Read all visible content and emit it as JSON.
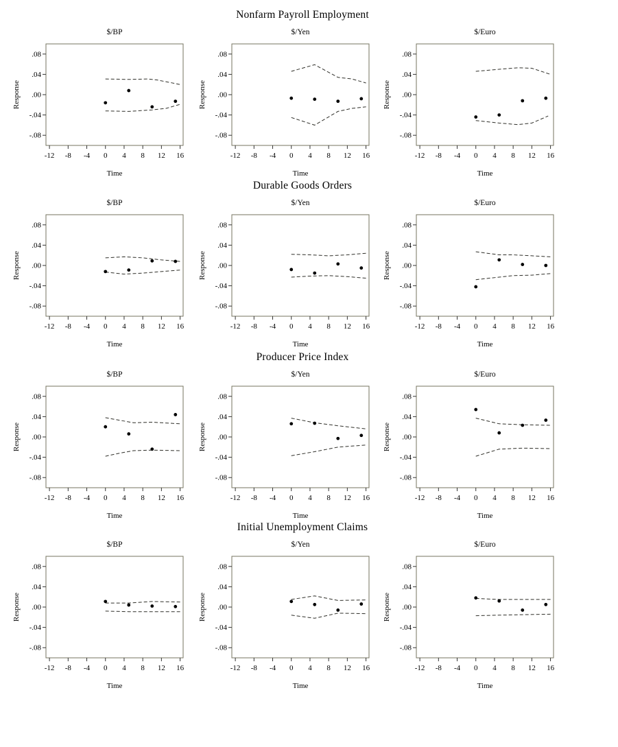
{
  "figure": {
    "row_titles": [
      "Nonfarm Payroll Employment",
      "Durable Goods Orders",
      "Producer Price Index",
      "Initial Unemployment Claims"
    ],
    "column_titles": [
      "$/BP",
      "$/Yen",
      "$/Euro"
    ]
  },
  "style": {
    "background": "#ffffff",
    "frame_color": "#75735f",
    "band_color": "#2e2e28",
    "point_color": "#000000",
    "text_color": "#000000"
  },
  "chart_data": [
    {
      "type": "scatter",
      "group": "Nonfarm Payroll Employment",
      "title": "$/BP",
      "xlabel": "Time",
      "ylabel": "Response",
      "xlim": [
        -12.75,
        16.65
      ],
      "ylim": [
        -0.1,
        0.1
      ],
      "xticks": [
        -12,
        -8,
        -4,
        0,
        4,
        8,
        12,
        16
      ],
      "ytick_labels": [
        ".08",
        ".04",
        ".00",
        "-.04",
        "-.08"
      ],
      "ytick_values": [
        0.08,
        0.04,
        0.0,
        -0.04,
        -0.08
      ],
      "points": {
        "x": [
          0,
          5,
          10,
          15
        ],
        "y": [
          -0.016,
          0.008,
          -0.024,
          -0.013
        ]
      },
      "band_upper": {
        "x": [
          0,
          5,
          9,
          11,
          16
        ],
        "y": [
          0.031,
          0.03,
          0.031,
          0.029,
          0.02
        ]
      },
      "band_lower": {
        "x": [
          0,
          5,
          10,
          13,
          16
        ],
        "y": [
          -0.032,
          -0.033,
          -0.03,
          -0.027,
          -0.019
        ]
      }
    },
    {
      "type": "scatter",
      "group": "Nonfarm Payroll Employment",
      "title": "$/Yen",
      "xlabel": "Time",
      "ylabel": "Response",
      "xlim": [
        -12.75,
        16.65
      ],
      "ylim": [
        -0.1,
        0.1
      ],
      "xticks": [
        -12,
        -8,
        -4,
        0,
        4,
        8,
        12,
        16
      ],
      "ytick_labels": [
        ".08",
        ".04",
        ".00",
        "-.04",
        "-.08"
      ],
      "ytick_values": [
        0.08,
        0.04,
        0.0,
        -0.04,
        -0.08
      ],
      "points": {
        "x": [
          0,
          5,
          10,
          15
        ],
        "y": [
          -0.007,
          -0.009,
          -0.013,
          -0.008
        ]
      },
      "band_upper": {
        "x": [
          0,
          5,
          10,
          13,
          16
        ],
        "y": [
          0.046,
          0.059,
          0.034,
          0.031,
          0.023
        ]
      },
      "band_lower": {
        "x": [
          0,
          5,
          10,
          13,
          16
        ],
        "y": [
          -0.045,
          -0.06,
          -0.033,
          -0.027,
          -0.024
        ]
      }
    },
    {
      "type": "scatter",
      "group": "Nonfarm Payroll Employment",
      "title": "$/Euro",
      "xlabel": "Time",
      "ylabel": "Response",
      "xlim": [
        -12.75,
        16.65
      ],
      "ylim": [
        -0.1,
        0.1
      ],
      "xticks": [
        -12,
        -8,
        -4,
        0,
        4,
        8,
        12,
        16
      ],
      "ytick_labels": [
        ".08",
        ".04",
        ".00",
        "-.04",
        "-.08"
      ],
      "ytick_values": [
        0.08,
        0.04,
        0.0,
        -0.04,
        -0.08
      ],
      "points": {
        "x": [
          0,
          5,
          10,
          15
        ],
        "y": [
          -0.044,
          -0.04,
          -0.012,
          -0.007
        ]
      },
      "band_upper": {
        "x": [
          0,
          5,
          9,
          12,
          16
        ],
        "y": [
          0.046,
          0.05,
          0.053,
          0.052,
          0.04
        ]
      },
      "band_lower": {
        "x": [
          0,
          5,
          9,
          12,
          15.5
        ],
        "y": [
          -0.051,
          -0.056,
          -0.059,
          -0.056,
          -0.042
        ]
      }
    },
    {
      "type": "scatter",
      "group": "Durable Goods Orders",
      "title": "$/BP",
      "xlabel": "Time",
      "ylabel": "Response",
      "xlim": [
        -12.75,
        16.65
      ],
      "ylim": [
        -0.1,
        0.1
      ],
      "xticks": [
        -12,
        -8,
        -4,
        0,
        4,
        8,
        12,
        16
      ],
      "ytick_labels": [
        ".08",
        ".04",
        ".00",
        "-.04",
        "-.08"
      ],
      "ytick_values": [
        0.08,
        0.04,
        0.0,
        -0.04,
        -0.08
      ],
      "points": {
        "x": [
          0,
          5,
          10,
          15
        ],
        "y": [
          -0.012,
          -0.009,
          0.009,
          0.008
        ]
      },
      "band_upper": {
        "x": [
          0,
          4,
          8,
          12,
          16
        ],
        "y": [
          0.015,
          0.017,
          0.015,
          0.011,
          0.008
        ]
      },
      "band_lower": {
        "x": [
          0,
          4,
          8,
          12,
          16
        ],
        "y": [
          -0.013,
          -0.017,
          -0.015,
          -0.012,
          -0.009
        ]
      }
    },
    {
      "type": "scatter",
      "group": "Durable Goods Orders",
      "title": "$/Yen",
      "xlabel": "Time",
      "ylabel": "Response",
      "xlim": [
        -12.75,
        16.65
      ],
      "ylim": [
        -0.1,
        0.1
      ],
      "xticks": [
        -12,
        -8,
        -4,
        0,
        4,
        8,
        12,
        16
      ],
      "ytick_labels": [
        ".08",
        ".04",
        ".00",
        "-.04",
        "-.08"
      ],
      "ytick_values": [
        0.08,
        0.04,
        0.0,
        -0.04,
        -0.08
      ],
      "points": {
        "x": [
          0,
          5,
          10,
          15
        ],
        "y": [
          -0.008,
          -0.015,
          0.003,
          -0.005
        ]
      },
      "band_upper": {
        "x": [
          0,
          4,
          8,
          12,
          16
        ],
        "y": [
          0.022,
          0.021,
          0.019,
          0.021,
          0.024
        ]
      },
      "band_lower": {
        "x": [
          0,
          4,
          8,
          12,
          16
        ],
        "y": [
          -0.023,
          -0.021,
          -0.02,
          -0.022,
          -0.025
        ]
      }
    },
    {
      "type": "scatter",
      "group": "Durable Goods Orders",
      "title": "$/Euro",
      "xlabel": "Time",
      "ylabel": "Response",
      "xlim": [
        -12.75,
        16.65
      ],
      "ylim": [
        -0.1,
        0.1
      ],
      "xticks": [
        -12,
        -8,
        -4,
        0,
        4,
        8,
        12,
        16
      ],
      "ytick_labels": [
        ".08",
        ".04",
        ".00",
        "-.04",
        "-.08"
      ],
      "ytick_values": [
        0.08,
        0.04,
        0.0,
        -0.04,
        -0.08
      ],
      "points": {
        "x": [
          0,
          5,
          10,
          15
        ],
        "y": [
          -0.042,
          0.011,
          0.002,
          0.0
        ]
      },
      "band_upper": {
        "x": [
          0,
          5,
          8,
          12,
          16
        ],
        "y": [
          0.027,
          0.021,
          0.021,
          0.019,
          0.017
        ]
      },
      "band_lower": {
        "x": [
          0,
          5,
          8,
          12,
          16
        ],
        "y": [
          -0.028,
          -0.023,
          -0.02,
          -0.019,
          -0.016
        ]
      }
    },
    {
      "type": "scatter",
      "group": "Producer Price Index",
      "title": "$/BP",
      "xlabel": "Time",
      "ylabel": "Response",
      "xlim": [
        -12.75,
        16.65
      ],
      "ylim": [
        -0.1,
        0.1
      ],
      "xticks": [
        -12,
        -8,
        -4,
        0,
        4,
        8,
        12,
        16
      ],
      "ytick_labels": [
        ".08",
        ".04",
        ".00",
        "-.04",
        "-.08"
      ],
      "ytick_values": [
        0.08,
        0.04,
        0.0,
        -0.04,
        -0.08
      ],
      "points": {
        "x": [
          0,
          5,
          10,
          15
        ],
        "y": [
          0.02,
          0.006,
          -0.024,
          0.044
        ]
      },
      "band_upper": {
        "x": [
          0,
          3,
          6,
          10,
          16
        ],
        "y": [
          0.038,
          0.033,
          0.028,
          0.029,
          0.026
        ]
      },
      "band_lower": {
        "x": [
          0,
          3,
          6,
          10,
          16
        ],
        "y": [
          -0.038,
          -0.032,
          -0.027,
          -0.026,
          -0.027
        ]
      }
    },
    {
      "type": "scatter",
      "group": "Producer Price Index",
      "title": "$/Yen",
      "xlabel": "Time",
      "ylabel": "Response",
      "xlim": [
        -12.75,
        16.65
      ],
      "ylim": [
        -0.1,
        0.1
      ],
      "xticks": [
        -12,
        -8,
        -4,
        0,
        4,
        8,
        12,
        16
      ],
      "ytick_labels": [
        ".08",
        ".04",
        ".00",
        "-.04",
        "-.08"
      ],
      "ytick_values": [
        0.08,
        0.04,
        0.0,
        -0.04,
        -0.08
      ],
      "points": {
        "x": [
          0,
          5,
          10,
          15
        ],
        "y": [
          0.026,
          0.027,
          -0.003,
          0.003
        ]
      },
      "band_upper": {
        "x": [
          0,
          5,
          10,
          16
        ],
        "y": [
          0.037,
          0.028,
          0.022,
          0.016
        ]
      },
      "band_lower": {
        "x": [
          0,
          5,
          10,
          16
        ],
        "y": [
          -0.037,
          -0.029,
          -0.02,
          -0.016
        ]
      }
    },
    {
      "type": "scatter",
      "group": "Producer Price Index",
      "title": "$/Euro",
      "xlabel": "Time",
      "ylabel": "Response",
      "xlim": [
        -12.75,
        16.65
      ],
      "ylim": [
        -0.1,
        0.1
      ],
      "xticks": [
        -12,
        -8,
        -4,
        0,
        4,
        8,
        12,
        16
      ],
      "ytick_labels": [
        ".08",
        ".04",
        ".00",
        "-.04",
        "-.08"
      ],
      "ytick_values": [
        0.08,
        0.04,
        0.0,
        -0.04,
        -0.08
      ],
      "points": {
        "x": [
          0,
          5,
          10,
          15
        ],
        "y": [
          0.054,
          0.008,
          0.023,
          0.033
        ]
      },
      "band_upper": {
        "x": [
          0,
          5,
          10,
          16
        ],
        "y": [
          0.037,
          0.026,
          0.024,
          0.023
        ]
      },
      "band_lower": {
        "x": [
          0,
          5,
          10,
          16
        ],
        "y": [
          -0.038,
          -0.024,
          -0.022,
          -0.023
        ]
      }
    },
    {
      "type": "scatter",
      "group": "Initial Unemployment Claims",
      "title": "$/BP",
      "xlabel": "Time",
      "ylabel": "Response",
      "xlim": [
        -12.75,
        16.65
      ],
      "ylim": [
        -0.1,
        0.1
      ],
      "xticks": [
        -12,
        -8,
        -4,
        0,
        4,
        8,
        12,
        16
      ],
      "ytick_labels": [
        ".08",
        ".04",
        ".00",
        "-.04",
        "-.08"
      ],
      "ytick_values": [
        0.08,
        0.04,
        0.0,
        -0.04,
        -0.08
      ],
      "points": {
        "x": [
          0,
          5,
          10,
          15
        ],
        "y": [
          0.011,
          0.004,
          0.002,
          0.001
        ]
      },
      "band_upper": {
        "x": [
          0,
          5,
          10,
          16
        ],
        "y": [
          0.008,
          0.008,
          0.011,
          0.01
        ]
      },
      "band_lower": {
        "x": [
          0,
          5,
          10,
          16
        ],
        "y": [
          -0.008,
          -0.009,
          -0.009,
          -0.009
        ]
      }
    },
    {
      "type": "scatter",
      "group": "Initial Unemployment Claims",
      "title": "$/Yen",
      "xlabel": "Time",
      "ylabel": "Response",
      "xlim": [
        -12.75,
        16.65
      ],
      "ylim": [
        -0.1,
        0.1
      ],
      "xticks": [
        -12,
        -8,
        -4,
        0,
        4,
        8,
        12,
        16
      ],
      "ytick_labels": [
        ".08",
        ".04",
        ".00",
        "-.04",
        "-.08"
      ],
      "ytick_values": [
        0.08,
        0.04,
        0.0,
        -0.04,
        -0.08
      ],
      "points": {
        "x": [
          0,
          5,
          10,
          15
        ],
        "y": [
          0.011,
          0.005,
          -0.006,
          0.006
        ]
      },
      "band_upper": {
        "x": [
          0,
          5,
          10,
          16
        ],
        "y": [
          0.015,
          0.022,
          0.013,
          0.014
        ]
      },
      "band_lower": {
        "x": [
          0,
          5,
          10,
          16
        ],
        "y": [
          -0.016,
          -0.022,
          -0.012,
          -0.013
        ]
      }
    },
    {
      "type": "scatter",
      "group": "Initial Unemployment Claims",
      "title": "$/Euro",
      "xlabel": "Time",
      "ylabel": "Response",
      "xlim": [
        -12.75,
        16.65
      ],
      "ylim": [
        -0.1,
        0.1
      ],
      "xticks": [
        -12,
        -8,
        -4,
        0,
        4,
        8,
        12,
        16
      ],
      "ytick_labels": [
        ".08",
        ".04",
        ".00",
        "-.04",
        "-.08"
      ],
      "ytick_values": [
        0.08,
        0.04,
        0.0,
        -0.04,
        -0.08
      ],
      "points": {
        "x": [
          0,
          5,
          10,
          15
        ],
        "y": [
          0.018,
          0.012,
          -0.006,
          0.005
        ]
      },
      "band_upper": {
        "x": [
          0,
          5,
          10,
          16
        ],
        "y": [
          0.017,
          0.015,
          0.015,
          0.015
        ]
      },
      "band_lower": {
        "x": [
          0,
          5,
          10,
          16
        ],
        "y": [
          -0.017,
          -0.016,
          -0.015,
          -0.014
        ]
      }
    }
  ]
}
